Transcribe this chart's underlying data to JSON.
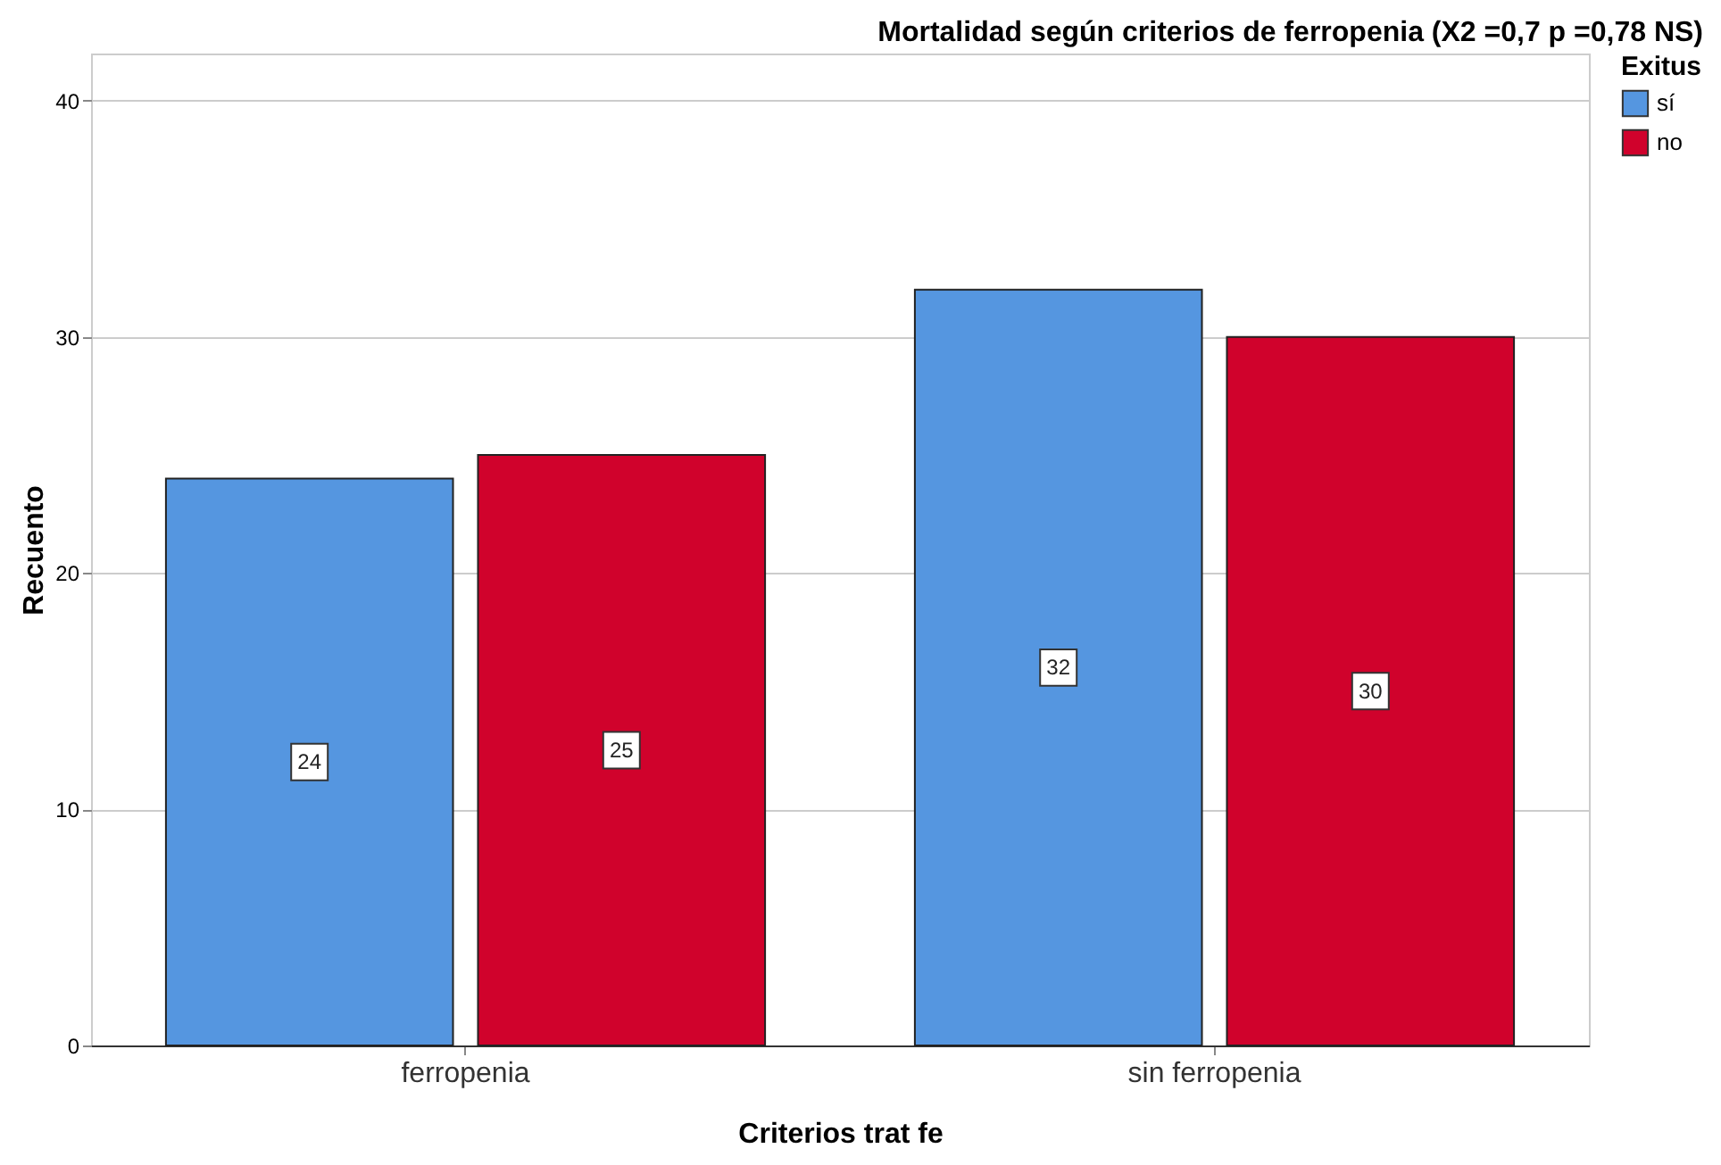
{
  "chart_data": {
    "type": "bar",
    "title": "Mortalidad según criterios de ferropenia (X2 =0,7 p =0,78 NS)",
    "xlabel": "Criterios trat fe",
    "ylabel": "Recuento",
    "legend_title": "Exitus",
    "categories": [
      "ferropenia",
      "sin ferropenia"
    ],
    "series": [
      {
        "name": "sí",
        "color": "#5596e0",
        "values": [
          24,
          32
        ]
      },
      {
        "name": "no",
        "color": "#d0022c",
        "values": [
          25,
          30
        ]
      }
    ],
    "ylim": [
      0,
      42
    ],
    "yticks": [
      0,
      10,
      20,
      30,
      40
    ],
    "grid": "y",
    "legend": "top right",
    "data_labels": true
  }
}
